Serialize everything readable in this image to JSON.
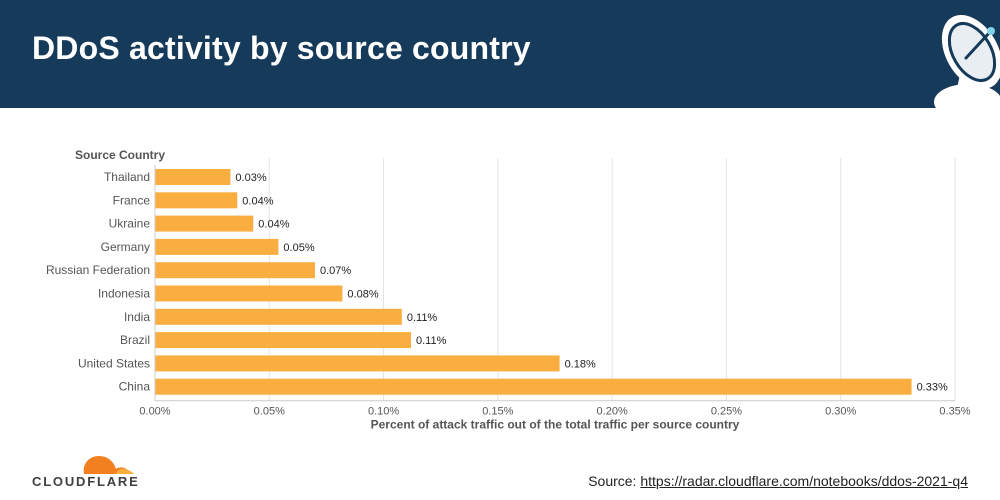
{
  "header": {
    "title": "DDoS activity by source country",
    "background": "#163a59"
  },
  "chart_data": {
    "type": "bar",
    "orientation": "horizontal",
    "categories": [
      "Thailand",
      "France",
      "Ukraine",
      "Germany",
      "Russian Federation",
      "Indonesia",
      "India",
      "Brazil",
      "United States",
      "China"
    ],
    "values": [
      0.033,
      0.036,
      0.043,
      0.054,
      0.07,
      0.082,
      0.108,
      0.112,
      0.177,
      0.331
    ],
    "data_labels": [
      "0.03%",
      "0.04%",
      "0.04%",
      "0.05%",
      "0.07%",
      "0.08%",
      "0.11%",
      "0.11%",
      "0.18%",
      "0.33%"
    ],
    "xticks": [
      0,
      0.05,
      0.1,
      0.15,
      0.2,
      0.25,
      0.3,
      0.35
    ],
    "xtick_labels": [
      "0.00%",
      "0.05%",
      "0.10%",
      "0.15%",
      "0.20%",
      "0.25%",
      "0.30%",
      "0.35%"
    ],
    "xlim": [
      0,
      0.35
    ],
    "ylabel": "Source Country",
    "xlabel": "Percent of attack traffic out of the total traffic per source country",
    "grid": true,
    "bar_color": "#fbae40"
  },
  "footer": {
    "brand": "CLOUDFLARE",
    "source_prefix": "Source: ",
    "source_link": "https://radar.cloudflare.com/notebooks/ddos-2021-q4"
  }
}
